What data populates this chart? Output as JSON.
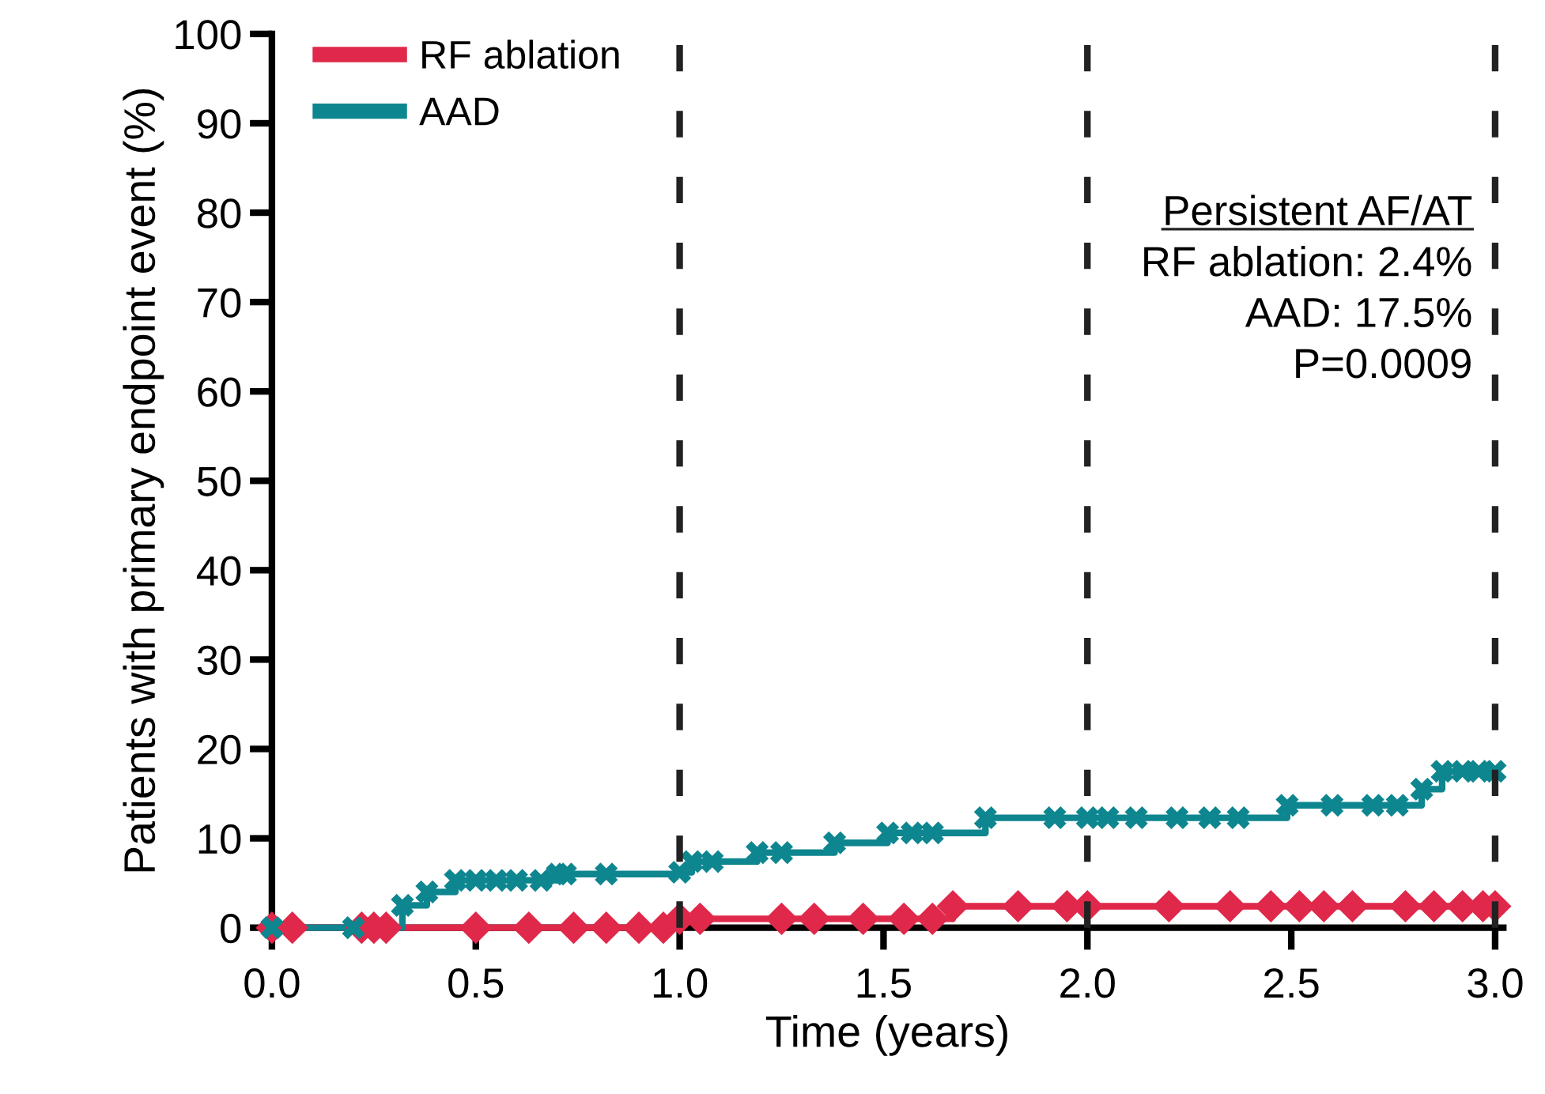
{
  "chart_data": {
    "type": "step",
    "xlabel": "Time (years)",
    "ylabel": "Patients with primary endpoint event (%)",
    "xlim": [
      0,
      3.02
    ],
    "ylim": [
      0,
      100
    ],
    "xticks": [
      {
        "value": 0,
        "label": "0.0"
      },
      {
        "value": 0.5,
        "label": "0.5"
      },
      {
        "value": 1,
        "label": "1.0"
      },
      {
        "value": 1.5,
        "label": "1.5"
      },
      {
        "value": 2,
        "label": "2.0"
      },
      {
        "value": 2.5,
        "label": "2.5"
      },
      {
        "value": 3,
        "label": "3.0"
      }
    ],
    "yticks": [
      0,
      10,
      20,
      30,
      40,
      50,
      60,
      70,
      80,
      90,
      100
    ],
    "grid": false,
    "legend": "top left",
    "series": [
      {
        "name": "RF ablation",
        "color": "#e0284a",
        "marker": "diamond",
        "x": [
          0,
          0.05,
          0.22,
          0.25,
          0.28,
          0.5,
          0.63,
          0.74,
          0.82,
          0.9,
          0.96,
          1.0,
          1.05,
          1.25,
          1.33,
          1.45,
          1.55,
          1.62,
          1.67,
          1.83,
          1.95,
          2.0,
          2.2,
          2.35,
          2.45,
          2.52,
          2.58,
          2.65,
          2.78,
          2.85,
          2.92,
          2.97,
          3.0
        ],
        "values": [
          0,
          0,
          0,
          0,
          0,
          0,
          0,
          0,
          0,
          0,
          0,
          1.0,
          1.0,
          1.0,
          1.0,
          1.0,
          1.0,
          1.0,
          2.4,
          2.4,
          2.4,
          2.4,
          2.4,
          2.4,
          2.4,
          2.4,
          2.4,
          2.4,
          2.4,
          2.4,
          2.4,
          2.4,
          2.4
        ]
      },
      {
        "name": "AAD",
        "color": "#0e8690",
        "marker": "cross",
        "x": [
          0,
          0.2,
          0.32,
          0.38,
          0.45,
          0.5,
          0.55,
          0.6,
          0.66,
          0.7,
          0.72,
          0.82,
          1.0,
          1.03,
          1.08,
          1.19,
          1.25,
          1.38,
          1.51,
          1.57,
          1.62,
          1.75,
          1.92,
          2.0,
          2.05,
          2.12,
          2.22,
          2.3,
          2.37,
          2.49,
          2.6,
          2.7,
          2.76,
          2.82,
          2.87,
          2.92,
          2.96,
          3.0
        ],
        "values": [
          0,
          0,
          2.5,
          4.0,
          5.3,
          5.3,
          5.3,
          5.3,
          5.3,
          6.0,
          6.0,
          6.0,
          6.2,
          7.4,
          7.4,
          8.4,
          8.4,
          9.5,
          10.6,
          10.6,
          10.6,
          12.3,
          12.3,
          12.3,
          12.3,
          12.3,
          12.3,
          12.3,
          12.3,
          13.7,
          13.7,
          13.7,
          13.7,
          15.5,
          17.5,
          17.5,
          17.5,
          17.5
        ]
      }
    ],
    "ref_lines": [
      {
        "axis": "x",
        "value": 1,
        "label": null,
        "color": "#222222",
        "line_style": "dashed"
      },
      {
        "axis": "x",
        "value": 2,
        "label": null,
        "color": "#222222",
        "line_style": "dashed"
      },
      {
        "axis": "x",
        "value": 3,
        "label": null,
        "color": "#222222",
        "line_style": "dashed"
      }
    ],
    "annotations": [
      "Persistent AF/AT",
      "RF ablation: 2.4%",
      "AAD: 17.5%",
      "P=0.0009"
    ]
  }
}
